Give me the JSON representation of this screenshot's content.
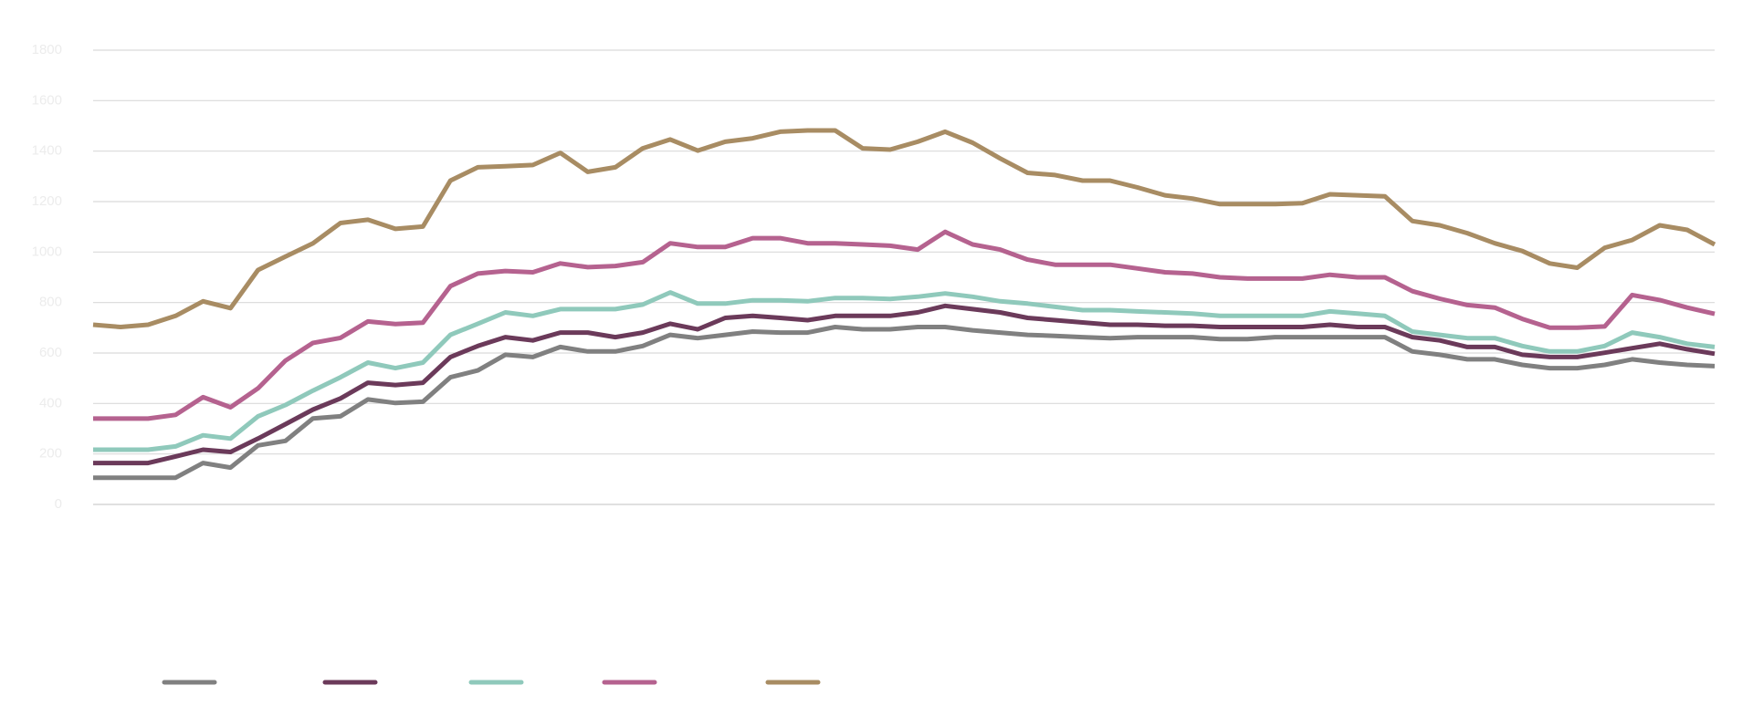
{
  "chart_data": {
    "type": "line",
    "categories": [
      null,
      null,
      null,
      null,
      null,
      null,
      null,
      null,
      null,
      null,
      null,
      null,
      null,
      null,
      null,
      null,
      null,
      null,
      null,
      null,
      null,
      null,
      null,
      null,
      null,
      null,
      null,
      null,
      null,
      null,
      null,
      null,
      null,
      null,
      null,
      null,
      null,
      null,
      null,
      null,
      null,
      null,
      null,
      null,
      null,
      null,
      null,
      null,
      null,
      null,
      null,
      null,
      null,
      null,
      null,
      null,
      null,
      null,
      null,
      null
    ],
    "ylim": [
      0,
      1800
    ],
    "yticks": [
      0,
      200,
      400,
      600,
      800,
      1000,
      1200,
      1400,
      1600,
      1800
    ],
    "grid": true,
    "series": [
      {
        "color": "#808080",
        "values": [
          106,
          106,
          106,
          106,
          164,
          146,
          234,
          252,
          341,
          349,
          416,
          402,
          407,
          504,
          531,
          593,
          584,
          624,
          606,
          606,
          628,
          672,
          659,
          672,
          685,
          681,
          681,
          703,
          694,
          694,
          703,
          703,
          690,
          681,
          672,
          668,
          663,
          659,
          663,
          663,
          663,
          655,
          655,
          663,
          663,
          663,
          663,
          663,
          606,
          593,
          575,
          575,
          553,
          540,
          540,
          553,
          575,
          562,
          553,
          548
        ]
      },
      {
        "color": "#6b3a5a",
        "values": [
          164,
          164,
          164,
          190,
          217,
          208,
          261,
          318,
          376,
          420,
          482,
          473,
          482,
          584,
          628,
          663,
          650,
          681,
          681,
          663,
          681,
          716,
          694,
          739,
          747,
          739,
          730,
          747,
          747,
          747,
          761,
          787,
          774,
          761,
          739,
          730,
          721,
          712,
          712,
          708,
          708,
          703,
          703,
          703,
          703,
          712,
          703,
          703,
          663,
          650,
          624,
          624,
          593,
          584,
          584,
          601,
          619,
          637,
          615,
          597
        ]
      },
      {
        "color": "#8fc9bb",
        "values": [
          217,
          217,
          217,
          230,
          274,
          261,
          349,
          394,
          451,
          504,
          562,
          540,
          562,
          672,
          716,
          761,
          747,
          774,
          774,
          774,
          792,
          840,
          796,
          796,
          809,
          809,
          805,
          818,
          818,
          814,
          823,
          836,
          823,
          805,
          796,
          783,
          770,
          770,
          765,
          761,
          756,
          747,
          747,
          747,
          747,
          765,
          756,
          747,
          685,
          672,
          659,
          659,
          628,
          606,
          606,
          628,
          681,
          663,
          637,
          624
        ]
      },
      {
        "color": "#b5628f",
        "values": [
          340,
          340,
          340,
          355,
          425,
          385,
          460,
          570,
          640,
          660,
          725,
          715,
          720,
          865,
          915,
          925,
          920,
          955,
          940,
          945,
          960,
          1035,
          1020,
          1020,
          1055,
          1055,
          1035,
          1035,
          1030,
          1025,
          1010,
          1080,
          1030,
          1010,
          970,
          950,
          950,
          950,
          935,
          920,
          915,
          900,
          895,
          895,
          895,
          910,
          900,
          900,
          845,
          815,
          790,
          780,
          735,
          700,
          700,
          705,
          830,
          810,
          780,
          755
        ]
      },
      {
        "color": "#a88c63",
        "values": [
          712,
          703,
          712,
          747,
          805,
          778,
          929,
          982,
          1035,
          1115,
          1128,
          1092,
          1101,
          1283,
          1336,
          1340,
          1345,
          1393,
          1318,
          1336,
          1411,
          1446,
          1402,
          1437,
          1451,
          1477,
          1482,
          1482,
          1411,
          1406,
          1437,
          1477,
          1433,
          1371,
          1314,
          1305,
          1283,
          1283,
          1256,
          1225,
          1212,
          1190,
          1190,
          1190,
          1194,
          1229,
          1225,
          1221,
          1123,
          1106,
          1075,
          1035,
          1004,
          955,
          938,
          1017,
          1048,
          1106,
          1088,
          1030
        ]
      }
    ]
  }
}
